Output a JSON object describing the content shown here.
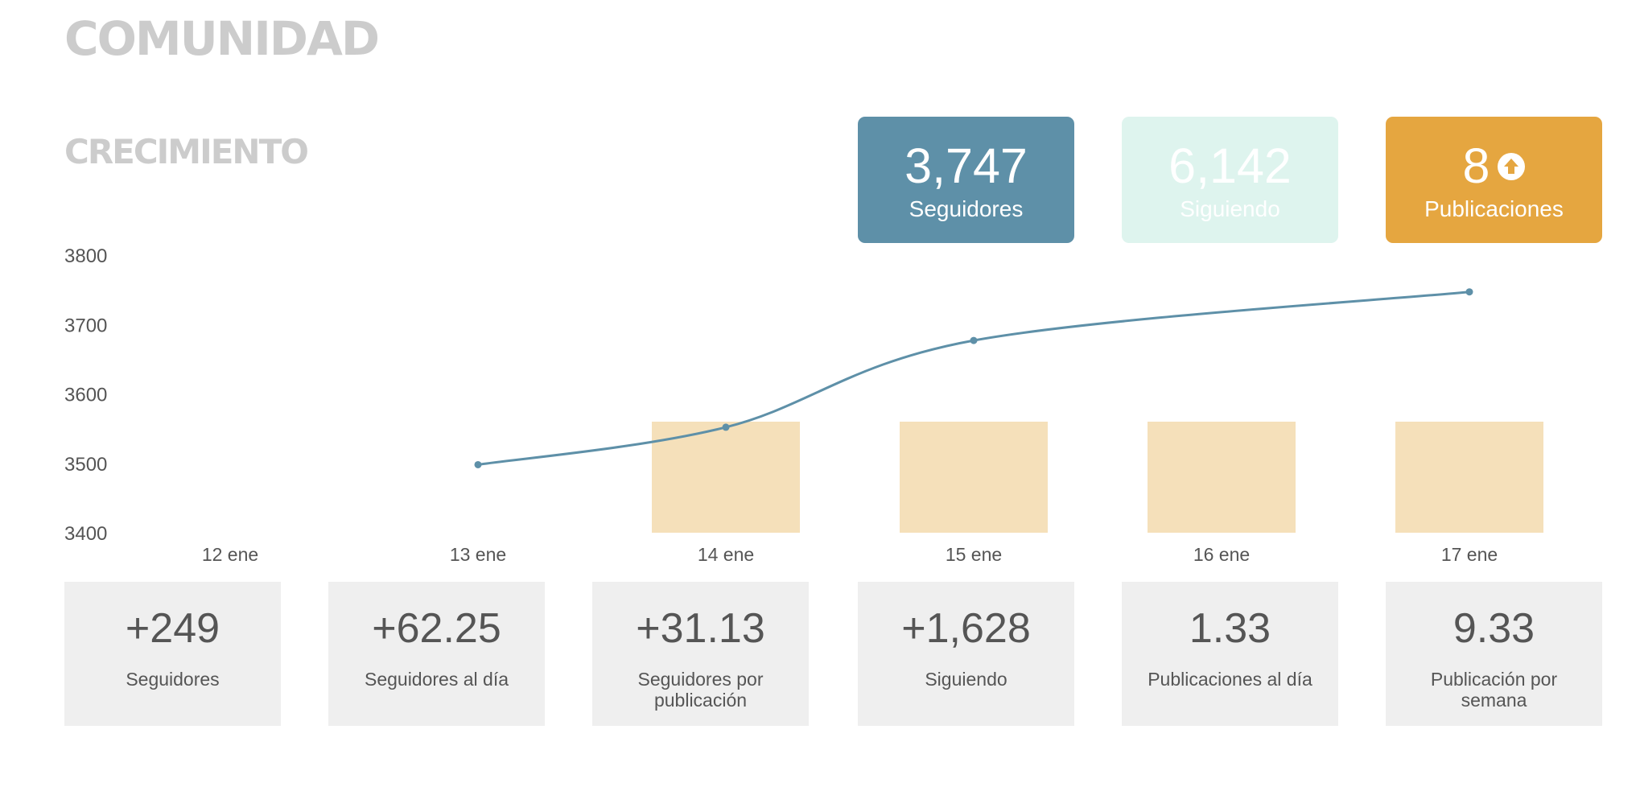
{
  "page": {
    "title": "COMUNIDAD",
    "subtitle": "CRECIMIENTO"
  },
  "stat_cards": [
    {
      "value": "3,747",
      "label": "Seguidores",
      "color": "#5e90a8"
    },
    {
      "value": "6,142",
      "label": "Siguiendo",
      "color": "#def4ee"
    },
    {
      "value": "8",
      "label": "Publicaciones",
      "color": "#e5a640",
      "icon": "arrow-up-circle-icon"
    }
  ],
  "metrics": [
    {
      "value": "+249",
      "label": "Seguidores"
    },
    {
      "value": "+62.25",
      "label": "Seguidores al día"
    },
    {
      "value": "+31.13",
      "label": "Seguidores por publicación"
    },
    {
      "value": "+1,628",
      "label": "Siguiendo"
    },
    {
      "value": "1.33",
      "label": "Publicaciones al día"
    },
    {
      "value": "9.33",
      "label": "Publicación por semana"
    }
  ],
  "chart_data": {
    "type": "line",
    "categories": [
      "12 ene",
      "13 ene",
      "14 ene",
      "15 ene",
      "16 ene",
      "17 ene"
    ],
    "ylim": [
      3400,
      3800
    ],
    "yticks": [
      3400,
      3500,
      3600,
      3700,
      3800
    ],
    "grid": false,
    "series": [
      {
        "type": "line",
        "values": [
          null,
          3498,
          3552,
          3677,
          null,
          3747
        ],
        "color": "#5e90a8"
      },
      {
        "type": "bar",
        "values": [
          null,
          null,
          3560,
          3560,
          3560,
          3560
        ],
        "color": "#f4ddb2"
      }
    ]
  }
}
